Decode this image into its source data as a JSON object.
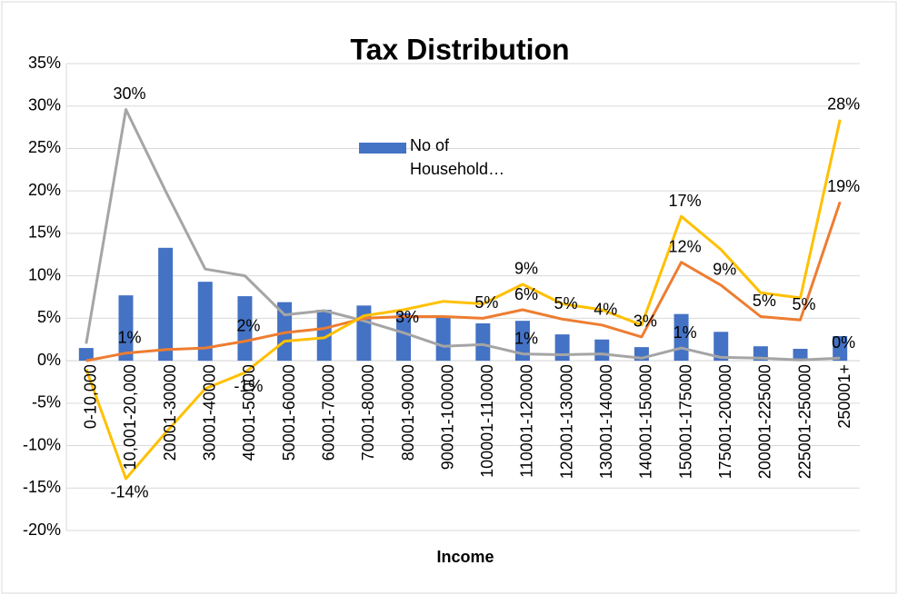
{
  "chart_data": {
    "type": "bar-line",
    "title": "Tax Distribution",
    "x_label": "Income",
    "categories": [
      "0-10,000",
      "10,001-20,000",
      "20001-30000",
      "30001-40000",
      "40001-50000",
      "50001-60000",
      "60001-70000",
      "70001-80000",
      "80001-90000",
      "90001-100000",
      "100001-110000",
      "110001-120000",
      "120001-130000",
      "130001-140000",
      "140001-150000",
      "150001-175000",
      "175001-200000",
      "200001-225000",
      "225001-250000",
      "250001+"
    ],
    "ylim": [
      -20,
      35
    ],
    "yticks": [
      {
        "value": -20,
        "label": "-20%"
      },
      {
        "value": -15,
        "label": "-15%"
      },
      {
        "value": -10,
        "label": "-10%"
      },
      {
        "value": -5,
        "label": "-5%"
      },
      {
        "value": 0,
        "label": "0%"
      },
      {
        "value": 5,
        "label": "5%"
      },
      {
        "value": 10,
        "label": "10%"
      },
      {
        "value": 15,
        "label": "15%"
      },
      {
        "value": 20,
        "label": "20%"
      },
      {
        "value": 25,
        "label": "25%"
      },
      {
        "value": 30,
        "label": "30%"
      },
      {
        "value": 35,
        "label": "35%"
      }
    ],
    "grid": true,
    "series": [
      {
        "name": "No of Household…",
        "kind": "bar",
        "color": "#4472c4",
        "values": [
          1.5,
          7.7,
          13.3,
          9.3,
          7.6,
          6.9,
          6.0,
          6.5,
          5.6,
          5.3,
          4.4,
          4.7,
          3.1,
          2.5,
          1.6,
          5.5,
          3.4,
          1.7,
          1.4,
          2.9
        ]
      },
      {
        "kind": "line",
        "color": "#a5a5a5",
        "values": [
          2.0,
          29.6,
          20.0,
          10.8,
          10.0,
          5.4,
          5.9,
          4.7,
          3.3,
          1.7,
          1.9,
          0.8,
          0.7,
          0.8,
          0.3,
          1.5,
          0.4,
          0.3,
          0.1,
          0.3
        ],
        "value_labels": [
          null,
          "30%",
          null,
          null,
          null,
          null,
          null,
          null,
          "3%",
          null,
          null,
          "1%",
          null,
          null,
          null,
          "1%",
          null,
          null,
          null,
          "0%"
        ]
      },
      {
        "kind": "line",
        "color": "#ed7d31",
        "values": [
          0.0,
          0.9,
          1.3,
          1.5,
          2.3,
          3.3,
          3.8,
          5.0,
          5.2,
          5.2,
          5.0,
          6.0,
          4.9,
          4.2,
          2.8,
          11.6,
          8.9,
          5.2,
          4.8,
          18.7
        ],
        "value_labels": [
          null,
          "1%",
          null,
          null,
          "2%",
          null,
          null,
          null,
          null,
          null,
          "5%",
          "6%",
          "5%",
          "4%",
          "3%",
          "12%",
          "9%",
          "5%",
          "5%",
          "19%"
        ]
      },
      {
        "kind": "line",
        "color": "#ffc000",
        "values": [
          -1.0,
          -13.9,
          -8.5,
          -3.3,
          -1.4,
          2.3,
          2.7,
          5.3,
          6.0,
          7.0,
          6.7,
          9.0,
          6.7,
          6.0,
          4.2,
          17.0,
          13.1,
          8.0,
          7.4,
          28.4
        ],
        "value_labels": [
          null,
          "-14%",
          null,
          null,
          "-1%",
          null,
          null,
          null,
          null,
          null,
          null,
          "9%",
          null,
          null,
          null,
          "17%",
          null,
          null,
          null,
          "28%"
        ]
      }
    ],
    "legend": "top-center"
  }
}
